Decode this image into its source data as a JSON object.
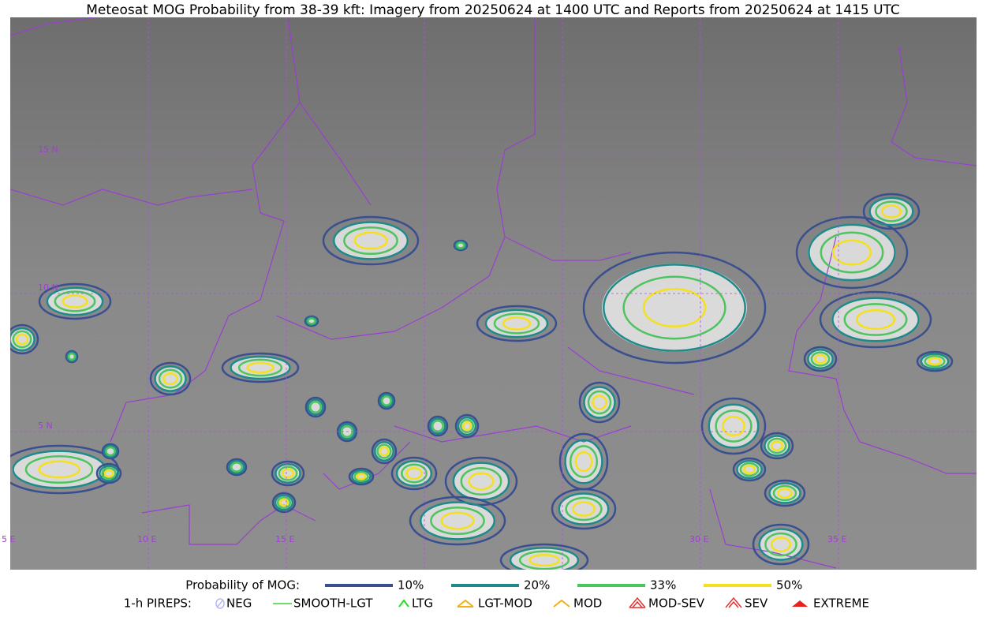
{
  "title": "Meteosat MOG Probability from 38-39 kft: Imagery from 20250624 at 1400 UTC and Reports from 20250624 at 1415 UTC",
  "map": {
    "lat_labels": [
      "15 N",
      "10 N",
      "5 N"
    ],
    "lon_labels": [
      "5 E",
      "10 E",
      "15 E",
      "30 E",
      "35 E"
    ]
  },
  "legend": {
    "probability": {
      "title": "Probability of MOG:",
      "items": [
        {
          "label": "10%",
          "color": "#3a4f8f"
        },
        {
          "label": "20%",
          "color": "#1f8a8a"
        },
        {
          "label": "33%",
          "color": "#4ec45e"
        },
        {
          "label": "50%",
          "color": "#f5e020"
        }
      ]
    },
    "pireps": {
      "title": "1-h PIREPS:",
      "items": [
        {
          "label": "NEG",
          "color": "#b8b8f0"
        },
        {
          "label": "SMOOTH-LGT",
          "color": "#3ed03e"
        },
        {
          "label": "LTG",
          "color": "#22dd22"
        },
        {
          "label": "LGT-MOD",
          "color": "#f0b020"
        },
        {
          "label": "MOD",
          "color": "#f0b020"
        },
        {
          "label": "MOD-SEV",
          "color": "#e83030"
        },
        {
          "label": "SEV",
          "color": "#e83030"
        },
        {
          "label": "EXTREME",
          "color": "#e82020"
        }
      ]
    }
  }
}
